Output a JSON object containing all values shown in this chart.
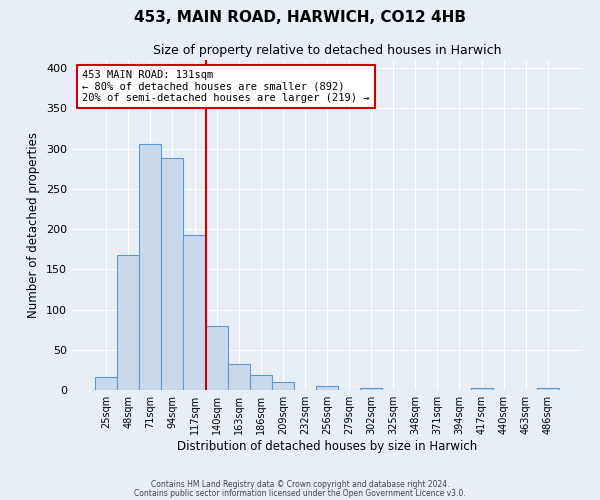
{
  "title": "453, MAIN ROAD, HARWICH, CO12 4HB",
  "subtitle": "Size of property relative to detached houses in Harwich",
  "xlabel": "Distribution of detached houses by size in Harwich",
  "ylabel": "Number of detached properties",
  "bar_labels": [
    "25sqm",
    "48sqm",
    "71sqm",
    "94sqm",
    "117sqm",
    "140sqm",
    "163sqm",
    "186sqm",
    "209sqm",
    "232sqm",
    "256sqm",
    "279sqm",
    "302sqm",
    "325sqm",
    "348sqm",
    "371sqm",
    "394sqm",
    "417sqm",
    "440sqm",
    "463sqm",
    "486sqm"
  ],
  "bar_values": [
    16,
    168,
    306,
    288,
    192,
    79,
    32,
    19,
    10,
    0,
    5,
    0,
    3,
    0,
    0,
    0,
    0,
    3,
    0,
    0,
    2
  ],
  "bar_color_face": "#c9d9ec",
  "bar_color_edge": "#5b9bd5",
  "vline_color": "#cc0000",
  "annotation_title": "453 MAIN ROAD: 131sqm",
  "annotation_line1": "← 80% of detached houses are smaller (892)",
  "annotation_line2": "20% of semi-detached houses are larger (219) →",
  "annotation_box_color": "#cc0000",
  "ylim": [
    0,
    410
  ],
  "yticks": [
    0,
    50,
    100,
    150,
    200,
    250,
    300,
    350,
    400
  ],
  "footer1": "Contains HM Land Registry data © Crown copyright and database right 2024.",
  "footer2": "Contains public sector information licensed under the Open Government Licence v3.0.",
  "bg_color": "#e8eef5",
  "plot_bg_color": "#e8eef5"
}
